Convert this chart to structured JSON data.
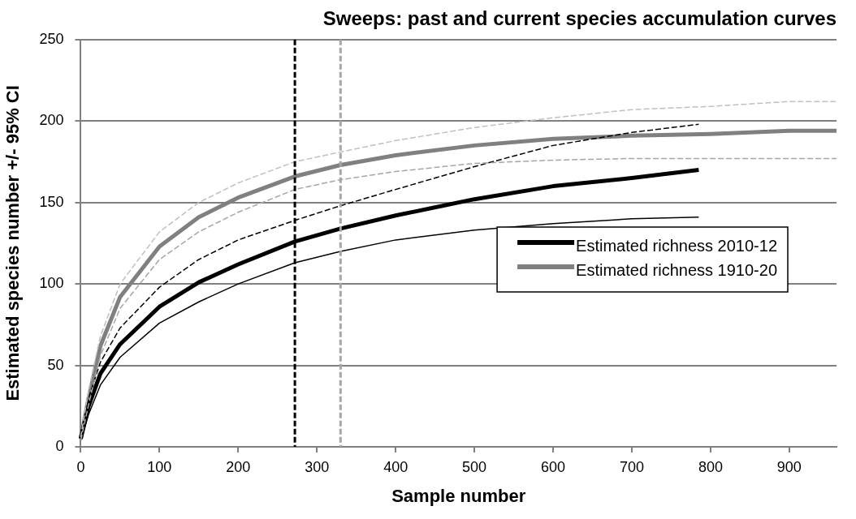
{
  "chart_data": {
    "type": "line",
    "title": "Sweeps: past and current species accumulation curves",
    "xlabel": "Sample number",
    "ylabel": "Estimated species number +/- 95% CI",
    "xlim": [
      0,
      960
    ],
    "xticks": [
      0,
      100,
      200,
      300,
      400,
      500,
      600,
      700,
      800,
      900
    ],
    "ylim": [
      0,
      250
    ],
    "yticks": [
      0,
      50,
      100,
      150,
      200,
      250
    ],
    "grid": "y",
    "legend": "center right",
    "marker": "none",
    "series": [
      {
        "color": "#c0c0c0",
        "line_style": "dashed",
        "x": [
          0,
          10,
          25,
          50,
          100,
          150,
          200,
          272,
          330,
          400,
          500,
          600,
          700,
          800,
          900,
          960
        ],
        "values": [
          6,
          35,
          68,
          100,
          132,
          150,
          162,
          175,
          181,
          188,
          196,
          202,
          207,
          209,
          212,
          212
        ]
      },
      {
        "color": "#a6a6a6",
        "line_style": "dashed",
        "x": [
          0,
          10,
          25,
          50,
          100,
          150,
          200,
          272,
          330,
          400,
          500,
          600,
          700,
          800,
          900,
          960
        ],
        "values": [
          4,
          26,
          56,
          85,
          115,
          132,
          144,
          158,
          164,
          169,
          174,
          176,
          177,
          177,
          177,
          177
        ]
      },
      {
        "color": "#000000",
        "line_style": "dashed",
        "x": [
          0,
          10,
          25,
          50,
          100,
          150,
          200,
          272,
          330,
          400,
          500,
          600,
          700,
          785
        ],
        "values": [
          6,
          30,
          52,
          73,
          98,
          115,
          127,
          139,
          148,
          158,
          172,
          185,
          193,
          198
        ]
      },
      {
        "color": "#000000",
        "line_style": "solid",
        "x": [
          0,
          10,
          25,
          50,
          100,
          150,
          200,
          272,
          330,
          400,
          500,
          600,
          700,
          785
        ],
        "values": [
          4,
          20,
          38,
          55,
          76,
          89,
          100,
          113,
          120,
          127,
          133,
          137,
          140,
          141
        ]
      },
      {
        "name": "Estimated richness 2010-12",
        "color": "#000000",
        "line_style": "solid",
        "x": [
          0,
          10,
          25,
          50,
          100,
          150,
          200,
          272,
          330,
          400,
          500,
          600,
          700,
          785
        ],
        "values": [
          5,
          25,
          45,
          63,
          86,
          101,
          112,
          126,
          134,
          142,
          152,
          160,
          165,
          170
        ]
      },
      {
        "name": "Estimated richness 1910-20",
        "color": "#808080",
        "line_style": "solid",
        "x": [
          0,
          10,
          25,
          50,
          100,
          150,
          200,
          272,
          330,
          400,
          500,
          600,
          700,
          800,
          900,
          960
        ],
        "values": [
          5,
          30,
          62,
          92,
          123,
          141,
          153,
          166,
          173,
          179,
          185,
          189,
          191,
          192,
          194,
          194
        ]
      }
    ],
    "ref_lines": [
      {
        "axis": "x",
        "value": 272,
        "color": "#000000",
        "line_style": "dashed"
      },
      {
        "axis": "x",
        "value": 330,
        "color": "#a6a6a6",
        "line_style": "dashed"
      }
    ]
  }
}
